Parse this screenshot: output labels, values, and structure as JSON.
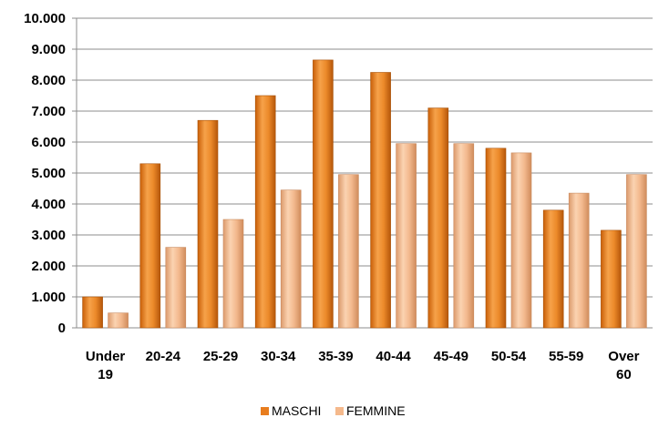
{
  "chart_data": {
    "type": "bar",
    "categories": [
      [
        "Under",
        "19"
      ],
      [
        "20-24"
      ],
      [
        "25-29"
      ],
      [
        "30-34"
      ],
      [
        "35-39"
      ],
      [
        "40-44"
      ],
      [
        "45-49"
      ],
      [
        "50-54"
      ],
      [
        "55-59"
      ],
      [
        "Over",
        "60"
      ]
    ],
    "series": [
      {
        "name": "MASCHI",
        "color": "#e87d1e",
        "values": [
          1000,
          5300,
          6700,
          7500,
          8650,
          8250,
          7100,
          5800,
          3800,
          3150
        ]
      },
      {
        "name": "FEMMINE",
        "color": "#f5b98c",
        "values": [
          480,
          2600,
          3500,
          4450,
          4950,
          5950,
          5950,
          5650,
          4350,
          4950
        ]
      }
    ],
    "ylim": [
      0,
      10000
    ],
    "yticks": [
      0,
      1000,
      2000,
      3000,
      4000,
      5000,
      6000,
      7000,
      8000,
      9000,
      10000
    ],
    "ytick_labels": [
      "0",
      "1.000",
      "2.000",
      "3.000",
      "4.000",
      "5.000",
      "6.000",
      "7.000",
      "8.000",
      "9.000",
      "10.000"
    ],
    "grid": true,
    "legend_position": "bottom",
    "title": "",
    "xlabel": "",
    "ylabel": ""
  }
}
